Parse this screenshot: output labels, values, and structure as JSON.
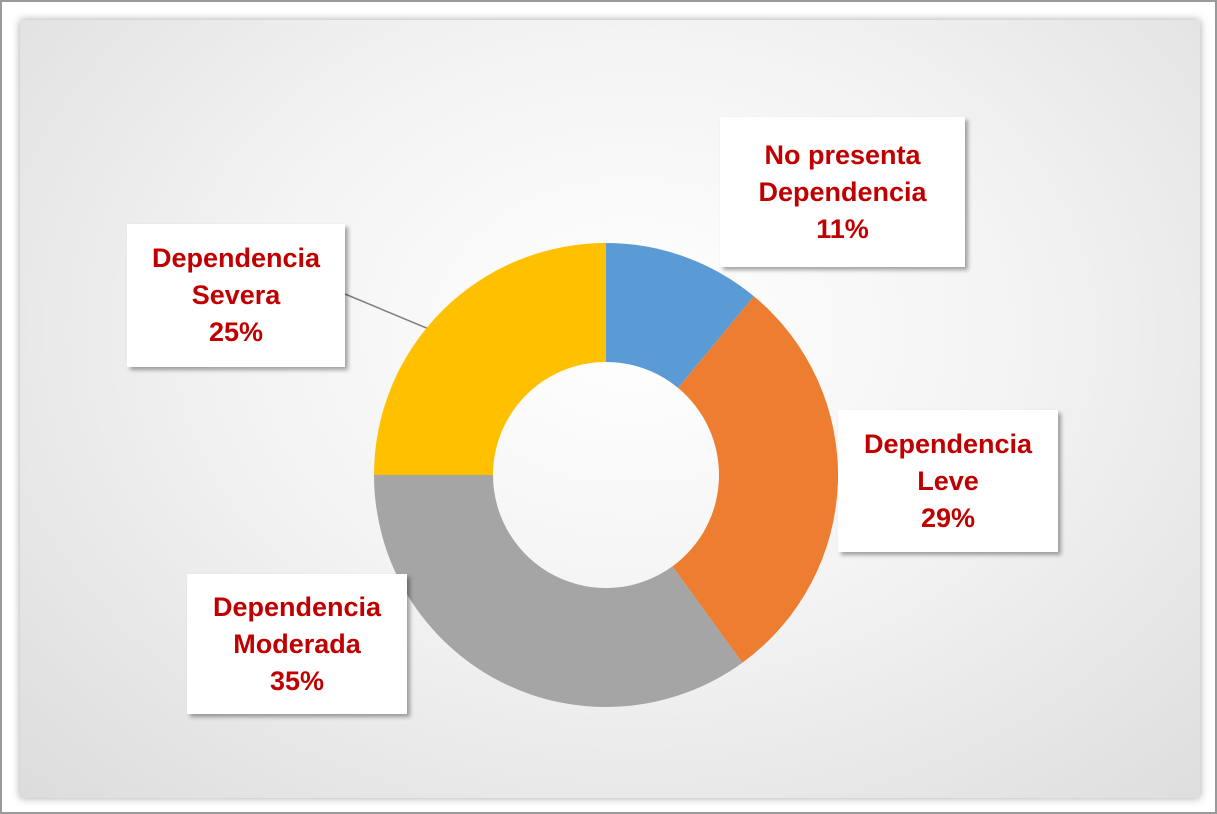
{
  "chart_data": {
    "type": "donut",
    "categories": [
      "No presenta Dependencia",
      "Dependencia Leve",
      "Dependencia Moderada",
      "Dependencia Severa"
    ],
    "values": [
      11,
      29,
      35,
      25
    ],
    "value_labels": [
      "11%",
      "29%",
      "35%",
      "25%"
    ],
    "colors": [
      "#5b9bd5",
      "#ed7d31",
      "#a5a5a5",
      "#ffc000"
    ]
  }
}
